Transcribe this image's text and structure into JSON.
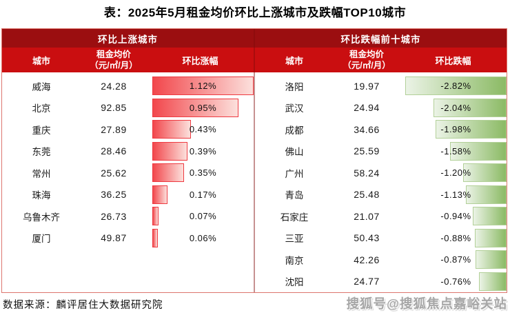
{
  "title": "表：2025年5月租金均价环比上涨城市及跌幅TOP10城市",
  "footer": {
    "source": "数据来源：麟评居住大数据研究院",
    "watermark": "搜狐号@搜狐焦点嘉峪关站"
  },
  "colors": {
    "band_dark": "#9B0E10",
    "band_bright": "#CA0E10",
    "frame": "#DC756D",
    "divider": "rgba(128,10,10,0.45)",
    "red_from": "#F2474C",
    "red_to": "#FCE0DC",
    "red_border": "#EE3940",
    "green_from": "#EBF3E6",
    "green_to": "#8BBA64",
    "green_border": "#B2D098"
  },
  "left": {
    "group_title": "环比上涨城市",
    "col_city": "城市",
    "col_price_l1": "租金均价",
    "col_price_l2": "（元/㎡/月）",
    "col_change": "环比涨幅",
    "max_abs": 1.12,
    "rows": [
      {
        "city": "威海",
        "price": "24.28",
        "pct": "1.12%",
        "value": 1.12
      },
      {
        "city": "北京",
        "price": "92.85",
        "pct": "0.95%",
        "value": 0.95
      },
      {
        "city": "重庆",
        "price": "27.89",
        "pct": "0.43%",
        "value": 0.43
      },
      {
        "city": "东莞",
        "price": "28.46",
        "pct": "0.39%",
        "value": 0.39
      },
      {
        "city": "常州",
        "price": "25.62",
        "pct": "0.35%",
        "value": 0.35
      },
      {
        "city": "珠海",
        "price": "36.25",
        "pct": "0.17%",
        "value": 0.17
      },
      {
        "city": "乌鲁木齐",
        "price": "26.73",
        "pct": "0.07%",
        "value": 0.07
      },
      {
        "city": "厦门",
        "price": "49.87",
        "pct": "0.06%",
        "value": 0.06
      }
    ]
  },
  "right": {
    "group_title": "环比跌幅前十城市",
    "col_city": "城市",
    "col_price_l1": "租金均价",
    "col_price_l2": "（元/㎡/月）",
    "col_change": "环比跌幅",
    "max_abs": 2.82,
    "rows": [
      {
        "city": "洛阳",
        "price": "19.97",
        "pct": "-2.82%",
        "value": 2.82
      },
      {
        "city": "武汉",
        "price": "24.94",
        "pct": "-2.04%",
        "value": 2.04
      },
      {
        "city": "成都",
        "price": "34.66",
        "pct": "-1.98%",
        "value": 1.98
      },
      {
        "city": "佛山",
        "price": "25.59",
        "pct": "-1.58%",
        "value": 1.58
      },
      {
        "city": "广州",
        "price": "58.24",
        "pct": "-1.20%",
        "value": 1.2
      },
      {
        "city": "青岛",
        "price": "25.48",
        "pct": "-1.13%",
        "value": 1.13
      },
      {
        "city": "石家庄",
        "price": "21.07",
        "pct": "-0.94%",
        "value": 0.94
      },
      {
        "city": "三亚",
        "price": "50.43",
        "pct": "-0.88%",
        "value": 0.88
      },
      {
        "city": "南京",
        "price": "42.26",
        "pct": "-0.87%",
        "value": 0.87
      },
      {
        "city": "沈阳",
        "price": "24.77",
        "pct": "-0.76%",
        "value": 0.76
      }
    ]
  },
  "chart_data": [
    {
      "type": "bar",
      "title": "环比上涨城市",
      "orientation": "horizontal",
      "categories": [
        "威海",
        "北京",
        "重庆",
        "东莞",
        "常州",
        "珠海",
        "乌鲁木齐",
        "厦门"
      ],
      "series": [
        {
          "name": "租金均价（元/㎡/月）",
          "values": [
            24.28,
            92.85,
            27.89,
            28.46,
            25.62,
            36.25,
            26.73,
            49.87
          ]
        },
        {
          "name": "环比涨幅（%）",
          "values": [
            1.12,
            0.95,
            0.43,
            0.39,
            0.35,
            0.17,
            0.07,
            0.06
          ]
        }
      ],
      "bar_series": "环比涨幅（%）",
      "bar_axis_range": [
        0,
        1.12
      ],
      "bar_color": "red gradient",
      "grid": false,
      "legend_position": "none"
    },
    {
      "type": "bar",
      "title": "环比跌幅前十城市",
      "orientation": "horizontal",
      "categories": [
        "洛阳",
        "武汉",
        "成都",
        "佛山",
        "广州",
        "青岛",
        "石家庄",
        "三亚",
        "南京",
        "沈阳"
      ],
      "series": [
        {
          "name": "租金均价（元/㎡/月）",
          "values": [
            19.97,
            24.94,
            34.66,
            25.59,
            58.24,
            25.48,
            21.07,
            50.43,
            42.26,
            24.77
          ]
        },
        {
          "name": "环比跌幅（%）",
          "values": [
            -2.82,
            -2.04,
            -1.98,
            -1.58,
            -1.2,
            -1.13,
            -0.94,
            -0.88,
            -0.87,
            -0.76
          ]
        }
      ],
      "bar_series": "环比跌幅（%）",
      "bar_axis_range": [
        -2.82,
        0
      ],
      "bar_color": "green gradient",
      "grid": false,
      "legend_position": "none"
    }
  ]
}
